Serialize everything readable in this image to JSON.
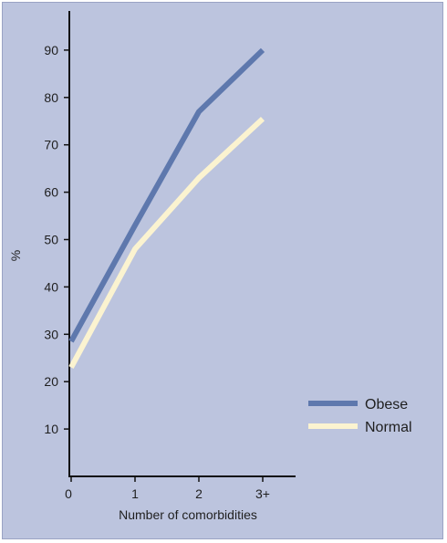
{
  "chart_data": {
    "type": "line",
    "title": "",
    "xlabel": "Number of comorbidities",
    "ylabel": "%",
    "categories": [
      "0",
      "1",
      "2",
      "3+"
    ],
    "ylim": [
      0,
      100
    ],
    "yticks": [
      "10",
      "20",
      "30",
      "40",
      "50",
      "60",
      "70",
      "80",
      "90"
    ],
    "grid": false,
    "legend_position": "bottom-right",
    "series": [
      {
        "name": "Obese",
        "color": "#5e78ad",
        "values": [
          28.5,
          53,
          77,
          90
        ]
      },
      {
        "name": "Normal",
        "color": "#fbf3d0",
        "values": [
          23,
          48,
          63,
          75.5
        ]
      }
    ],
    "colors": {
      "background": "#bcc4de",
      "axis": "#111111"
    }
  }
}
